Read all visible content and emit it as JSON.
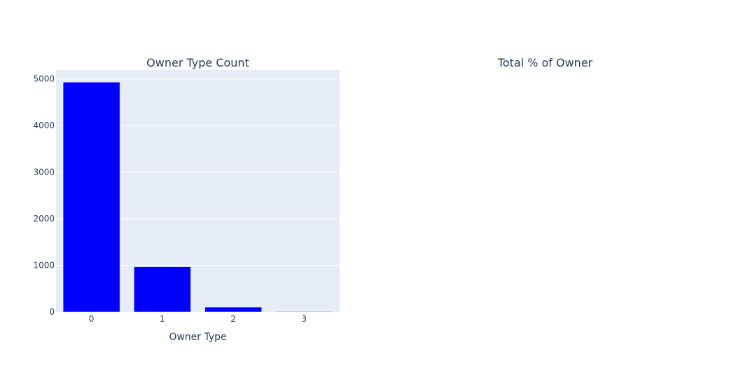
{
  "subplot_titles": [
    "Owner Type Count",
    "Total % of Owner"
  ],
  "chart_data": [
    {
      "type": "bar",
      "title": "Owner Type Count",
      "xlabel": "Owner Type",
      "ylabel": "",
      "categories": [
        "0",
        "1",
        "2",
        "3"
      ],
      "values": [
        4929,
        968,
        103,
        9
      ],
      "ylim": [
        0,
        5189
      ],
      "yticks": [
        0,
        1000,
        2000,
        3000,
        4000,
        5000
      ],
      "ytick_labels": [
        "0",
        "1000",
        "2000",
        "3000",
        "4000",
        "5000"
      ],
      "bar_color": "#0000ff",
      "plot_bgcolor": "#e5ecf6",
      "grid": true,
      "legend": "none"
    },
    {
      "type": "pie",
      "title": "Total % of Owner",
      "labels": [],
      "values": []
    }
  ]
}
